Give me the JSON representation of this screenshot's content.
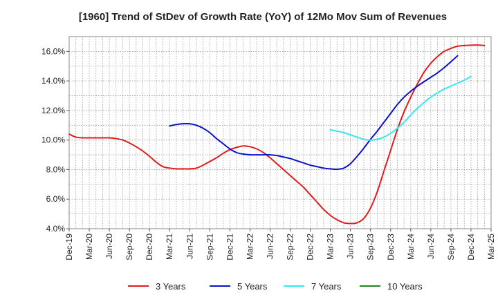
{
  "chart_data": {
    "type": "line",
    "title": "[1960]  Trend of StDev of Growth Rate (YoY) of 12Mo Mov Sum of Revenues",
    "xlabel": "",
    "ylabel": "",
    "ylim": [
      4.0,
      17.0
    ],
    "yticks": [
      4.0,
      6.0,
      8.0,
      10.0,
      12.0,
      14.0,
      16.0
    ],
    "ytick_labels": [
      "4.0%",
      "6.0%",
      "8.0%",
      "10.0%",
      "12.0%",
      "14.0%",
      "16.0%"
    ],
    "x_start": "Dec-19",
    "x_end": "Mar-25",
    "x_tick_labels": [
      "Dec-19",
      "Mar-20",
      "Jun-20",
      "Sep-20",
      "Dec-20",
      "Mar-21",
      "Jun-21",
      "Sep-21",
      "Dec-21",
      "Mar-22",
      "Jun-22",
      "Sep-22",
      "Dec-22",
      "Mar-23",
      "Jun-23",
      "Sep-23",
      "Dec-23",
      "Mar-24",
      "Jun-24",
      "Sep-24",
      "Dec-24",
      "Mar-25"
    ],
    "grid": true,
    "legend_position": "bottom",
    "series": [
      {
        "name": "3 Years",
        "color": "#e31a1c",
        "start_index": 0,
        "values": [
          10.4,
          10.2,
          10.15,
          10.15,
          10.15,
          10.15,
          10.15,
          10.1,
          10.0,
          9.8,
          9.55,
          9.25,
          8.9,
          8.5,
          8.2,
          8.1,
          8.05,
          8.05,
          8.05,
          8.1,
          8.3,
          8.55,
          8.8,
          9.1,
          9.35,
          9.5,
          9.6,
          9.55,
          9.4,
          9.15,
          8.8,
          8.4,
          8.0,
          7.6,
          7.2,
          6.8,
          6.3,
          5.8,
          5.3,
          4.9,
          4.6,
          4.4,
          4.35,
          4.4,
          4.7,
          5.4,
          6.5,
          7.9,
          9.3,
          10.7,
          11.9,
          12.9,
          13.8,
          14.6,
          15.2,
          15.65,
          16.0,
          16.2,
          16.35,
          16.4,
          16.42,
          16.43,
          16.4
        ]
      },
      {
        "name": "5 Years",
        "color": "#0a12c8",
        "start_index": 15,
        "values": [
          10.95,
          11.05,
          11.1,
          11.1,
          11.0,
          10.8,
          10.5,
          10.1,
          9.75,
          9.4,
          9.15,
          9.05,
          9.0,
          9.0,
          9.0,
          9.0,
          8.95,
          8.85,
          8.75,
          8.6,
          8.45,
          8.3,
          8.2,
          8.1,
          8.05,
          8.02,
          8.1,
          8.4,
          8.9,
          9.45,
          10.05,
          10.6,
          11.2,
          11.8,
          12.4,
          12.9,
          13.3,
          13.65,
          13.95,
          14.25,
          14.55,
          14.9,
          15.3,
          15.7
        ]
      },
      {
        "name": "7 Years",
        "color": "#33e8f0",
        "start_index": 39,
        "values": [
          10.7,
          10.6,
          10.5,
          10.35,
          10.2,
          10.05,
          10.0,
          10.05,
          10.2,
          10.45,
          10.8,
          11.2,
          11.7,
          12.15,
          12.55,
          12.9,
          13.2,
          13.45,
          13.65,
          13.85,
          14.05,
          14.3
        ]
      },
      {
        "name": "10 Years",
        "color": "#1a8a1a",
        "start_index": 0,
        "values": []
      }
    ]
  }
}
